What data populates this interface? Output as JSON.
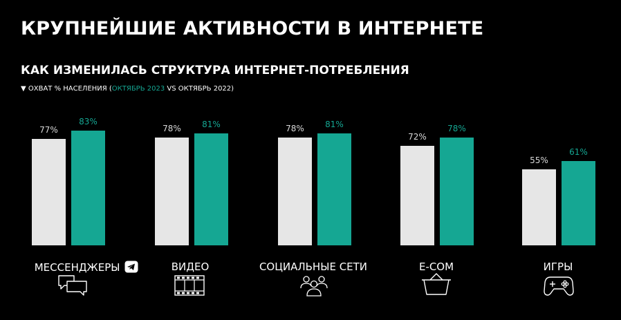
{
  "title": "КРУПНЕЙШИЕ АКТИВНОСТИ В ИНТЕРНЕТЕ",
  "subtitle": "КАК ИЗМЕНИЛАСЬ СТРУКТУРА ИНТЕРНЕТ-ПОТРЕБЛЕНИЯ",
  "note": {
    "prefix": "▼ ОХВАТ % НАСЕЛЕНИЯ (",
    "accent": "ОКТЯБРЬ 2023",
    "suffix": " VS ОКТЯБРЬ 2022)"
  },
  "colors": {
    "series_2022": "#e6e6e6",
    "series_2023": "#15a793",
    "background": "#000000"
  },
  "chart_data": {
    "type": "bar",
    "categories": [
      "МЕССЕНДЖЕРЫ",
      "ВИДЕО",
      "СОЦИАЛЬНЫЕ СЕТИ",
      "E-COM",
      "ИГРЫ"
    ],
    "series": [
      {
        "name": "ОКТЯБРЬ 2022",
        "values": [
          77,
          78,
          78,
          72,
          55
        ],
        "labels": [
          "77%",
          "78%",
          "78%",
          "72%",
          "55%"
        ]
      },
      {
        "name": "ОКТЯБРЬ 2023",
        "values": [
          83,
          81,
          81,
          78,
          61
        ],
        "labels": [
          "83%",
          "81%",
          "81%",
          "78%",
          "61%"
        ]
      }
    ],
    "ylim": [
      0,
      100
    ],
    "grid": false
  },
  "icons": [
    "chat-bubbles-icon",
    "film-strip-icon",
    "people-group-icon",
    "shopping-basket-icon",
    "gamepad-icon",
    "telegram-icon"
  ]
}
